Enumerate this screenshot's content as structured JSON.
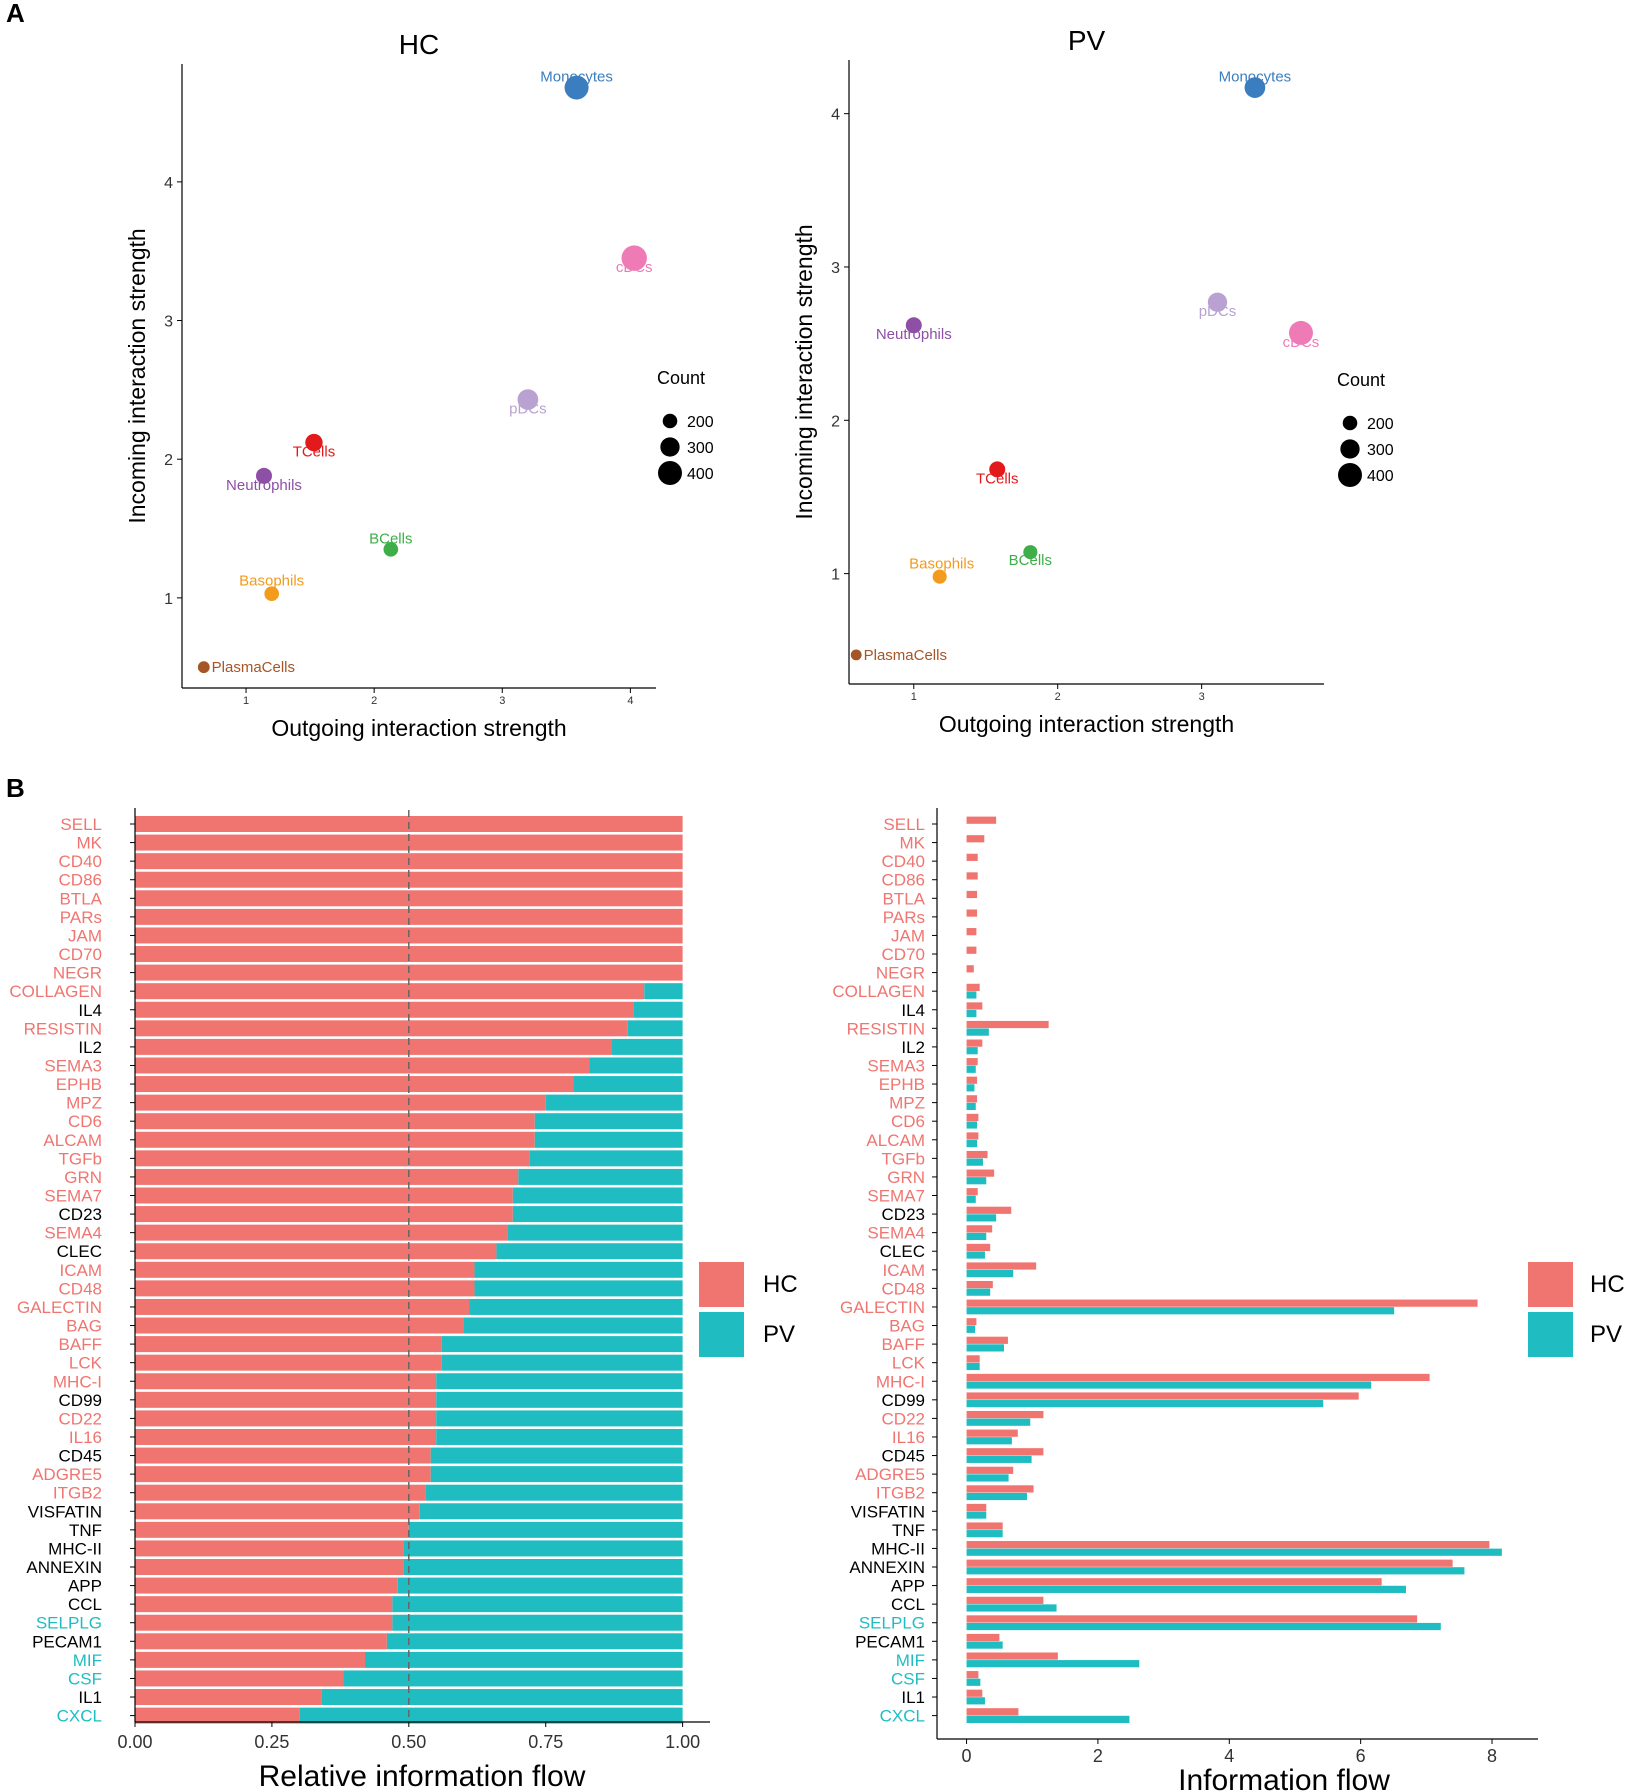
{
  "panel_labels": [
    "A",
    "B"
  ],
  "colors": {
    "hc": "#F07570",
    "pv": "#1FBDC2",
    "black": "#000000",
    "Monocytes": "#3A7EBF",
    "cDCs": "#EE7BB5",
    "pDCs": "#B9A2D1",
    "TCells": "#E31A1C",
    "Neutrophils": "#8E4FA7",
    "BCells": "#3FAE49",
    "Basophils": "#F29B1D",
    "PlasmaCells": "#A65527"
  },
  "chart_data": [
    {
      "type": "scatter",
      "title": "HC",
      "xlabel": "Outgoing interaction strength",
      "ylabel": "Incoming interaction strength",
      "xlim": [
        0.5,
        4.2
      ],
      "ylim": [
        0.35,
        4.85
      ],
      "xticks": [
        1,
        2,
        3,
        4
      ],
      "yticks": [
        1,
        2,
        3,
        4
      ],
      "points": [
        {
          "label": "Monocytes",
          "x": 3.58,
          "y": 4.68,
          "count": 400
        },
        {
          "label": "cDCs",
          "x": 4.03,
          "y": 3.45,
          "count": 430
        },
        {
          "label": "pDCs",
          "x": 3.2,
          "y": 2.43,
          "count": 330
        },
        {
          "label": "TCells",
          "x": 1.53,
          "y": 2.12,
          "count": 260
        },
        {
          "label": "Neutrophils",
          "x": 1.14,
          "y": 1.88,
          "count": 230
        },
        {
          "label": "BCells",
          "x": 2.13,
          "y": 1.35,
          "count": 200
        },
        {
          "label": "Basophils",
          "x": 1.2,
          "y": 1.03,
          "count": 200
        },
        {
          "label": "PlasmaCells",
          "x": 0.67,
          "y": 0.5,
          "count": 140
        }
      ],
      "legend": {
        "title": "Count",
        "entries": [
          200,
          300,
          400
        ]
      }
    },
    {
      "type": "scatter",
      "title": "PV",
      "xlabel": "Outgoing interaction strength",
      "ylabel": "Incoming interaction strength",
      "xlim": [
        0.55,
        3.85
      ],
      "ylim": [
        0.28,
        4.35
      ],
      "xticks": [
        1,
        2,
        3
      ],
      "yticks": [
        1,
        2,
        3,
        4
      ],
      "points": [
        {
          "label": "Monocytes",
          "x": 3.37,
          "y": 4.17,
          "count": 330
        },
        {
          "label": "pDCs",
          "x": 3.11,
          "y": 2.77,
          "count": 300
        },
        {
          "label": "cDCs",
          "x": 3.69,
          "y": 2.57,
          "count": 400
        },
        {
          "label": "Neutrophils",
          "x": 1.0,
          "y": 2.62,
          "count": 230
        },
        {
          "label": "TCells",
          "x": 1.58,
          "y": 1.68,
          "count": 230
        },
        {
          "label": "BCells",
          "x": 1.81,
          "y": 1.14,
          "count": 190
        },
        {
          "label": "Basophils",
          "x": 1.18,
          "y": 0.98,
          "count": 190
        },
        {
          "label": "PlasmaCells",
          "x": 0.6,
          "y": 0.47,
          "count": 120
        }
      ],
      "legend": {
        "title": "Count",
        "entries": [
          200,
          300,
          400
        ]
      }
    },
    {
      "type": "bar",
      "orientation": "horizontal-stacked",
      "xlabel": "Relative information flow",
      "xlim": [
        0,
        1.05
      ],
      "xticks": [
        "0.00",
        "0.25",
        "0.50",
        "0.75",
        "1.00"
      ],
      "reference_line": 0.5,
      "categories": [
        "SELL",
        "MK",
        "CD40",
        "CD86",
        "BTLA",
        "PARs",
        "JAM",
        "CD70",
        "NEGR",
        "COLLAGEN",
        "IL4",
        "RESISTIN",
        "IL2",
        "SEMA3",
        "EPHB",
        "MPZ",
        "CD6",
        "ALCAM",
        "TGFb",
        "GRN",
        "SEMA7",
        "CD23",
        "SEMA4",
        "CLEC",
        "ICAM",
        "CD48",
        "GALECTIN",
        "BAG",
        "BAFF",
        "LCK",
        "MHC-I",
        "CD99",
        "CD22",
        "IL16",
        "CD45",
        "ADGRE5",
        "ITGB2",
        "VISFATIN",
        "TNF",
        "MHC-II",
        "ANNEXIN",
        "APP",
        "CCL",
        "SELPLG",
        "PECAM1",
        "MIF",
        "CSF",
        "IL1",
        "CXCL"
      ],
      "label_group": [
        "hc",
        "hc",
        "hc",
        "hc",
        "hc",
        "hc",
        "hc",
        "hc",
        "hc",
        "hc",
        "black",
        "hc",
        "black",
        "hc",
        "hc",
        "hc",
        "hc",
        "hc",
        "hc",
        "hc",
        "hc",
        "black",
        "hc",
        "black",
        "hc",
        "hc",
        "hc",
        "hc",
        "hc",
        "hc",
        "hc",
        "black",
        "hc",
        "hc",
        "black",
        "hc",
        "hc",
        "black",
        "black",
        "black",
        "black",
        "black",
        "black",
        "pv",
        "black",
        "pv",
        "pv",
        "black",
        "pv"
      ],
      "series": [
        {
          "name": "HC",
          "values": [
            1,
            1,
            1,
            1,
            1,
            1,
            1,
            1,
            1,
            0.93,
            0.91,
            0.9,
            0.87,
            0.83,
            0.8,
            0.75,
            0.73,
            0.73,
            0.72,
            0.7,
            0.69,
            0.69,
            0.68,
            0.66,
            0.62,
            0.62,
            0.61,
            0.6,
            0.56,
            0.56,
            0.55,
            0.55,
            0.55,
            0.55,
            0.54,
            0.54,
            0.53,
            0.52,
            0.5,
            0.49,
            0.49,
            0.48,
            0.47,
            0.47,
            0.46,
            0.42,
            0.38,
            0.34,
            0.3
          ]
        },
        {
          "name": "PV",
          "values": [
            0,
            0,
            0,
            0,
            0,
            0,
            0,
            0,
            0,
            0.07,
            0.09,
            0.1,
            0.13,
            0.17,
            0.2,
            0.25,
            0.27,
            0.27,
            0.28,
            0.3,
            0.31,
            0.31,
            0.32,
            0.34,
            0.38,
            0.38,
            0.39,
            0.4,
            0.44,
            0.44,
            0.45,
            0.45,
            0.45,
            0.45,
            0.46,
            0.46,
            0.47,
            0.48,
            0.5,
            0.51,
            0.51,
            0.52,
            0.53,
            0.53,
            0.54,
            0.58,
            0.62,
            0.66,
            0.7
          ]
        }
      ],
      "legend": {
        "entries": [
          "HC",
          "PV"
        ]
      }
    },
    {
      "type": "bar",
      "orientation": "horizontal-grouped",
      "xlabel": "Information flow",
      "xlim": [
        -0.45,
        8.7
      ],
      "xticks": [
        0,
        2,
        4,
        6,
        8
      ],
      "categories": [
        "SELL",
        "MK",
        "CD40",
        "CD86",
        "BTLA",
        "PARs",
        "JAM",
        "CD70",
        "NEGR",
        "COLLAGEN",
        "IL4",
        "RESISTIN",
        "IL2",
        "SEMA3",
        "EPHB",
        "MPZ",
        "CD6",
        "ALCAM",
        "TGFb",
        "GRN",
        "SEMA7",
        "CD23",
        "SEMA4",
        "CLEC",
        "ICAM",
        "CD48",
        "GALECTIN",
        "BAG",
        "BAFF",
        "LCK",
        "MHC-I",
        "CD99",
        "CD22",
        "IL16",
        "CD45",
        "ADGRE5",
        "ITGB2",
        "VISFATIN",
        "TNF",
        "MHC-II",
        "ANNEXIN",
        "APP",
        "CCL",
        "SELPLG",
        "PECAM1",
        "MIF",
        "CSF",
        "IL1",
        "CXCL"
      ],
      "label_group": [
        "hc",
        "hc",
        "hc",
        "hc",
        "hc",
        "hc",
        "hc",
        "hc",
        "hc",
        "hc",
        "black",
        "hc",
        "black",
        "hc",
        "hc",
        "hc",
        "hc",
        "hc",
        "hc",
        "hc",
        "hc",
        "black",
        "hc",
        "black",
        "hc",
        "hc",
        "hc",
        "hc",
        "hc",
        "hc",
        "hc",
        "black",
        "hc",
        "hc",
        "black",
        "hc",
        "hc",
        "black",
        "black",
        "black",
        "black",
        "black",
        "black",
        "pv",
        "black",
        "pv",
        "pv",
        "black",
        "pv"
      ],
      "series": [
        {
          "name": "HC",
          "values": [
            0.45,
            0.27,
            0.17,
            0.17,
            0.16,
            0.16,
            0.15,
            0.15,
            0.11,
            0.2,
            0.24,
            1.25,
            0.24,
            0.17,
            0.16,
            0.16,
            0.18,
            0.18,
            0.32,
            0.42,
            0.17,
            0.68,
            0.39,
            0.36,
            1.06,
            0.4,
            7.78,
            0.15,
            0.63,
            0.2,
            7.05,
            5.97,
            1.17,
            0.78,
            1.17,
            0.71,
            1.02,
            0.3,
            0.55,
            7.96,
            7.4,
            6.32,
            1.17,
            6.86,
            0.5,
            1.39,
            0.18,
            0.24,
            0.79
          ]
        },
        {
          "name": "PV",
          "values": [
            0,
            0,
            0,
            0,
            0,
            0,
            0,
            0,
            0,
            0.15,
            0.15,
            0.34,
            0.17,
            0.14,
            0.12,
            0.14,
            0.16,
            0.16,
            0.25,
            0.3,
            0.14,
            0.45,
            0.3,
            0.28,
            0.71,
            0.36,
            6.51,
            0.13,
            0.57,
            0.2,
            6.16,
            5.43,
            0.97,
            0.69,
            0.99,
            0.64,
            0.92,
            0.3,
            0.55,
            8.15,
            7.58,
            6.69,
            1.37,
            7.22,
            0.55,
            2.63,
            0.21,
            0.28,
            2.48
          ]
        }
      ],
      "legend": {
        "entries": [
          "HC",
          "PV"
        ]
      }
    }
  ]
}
